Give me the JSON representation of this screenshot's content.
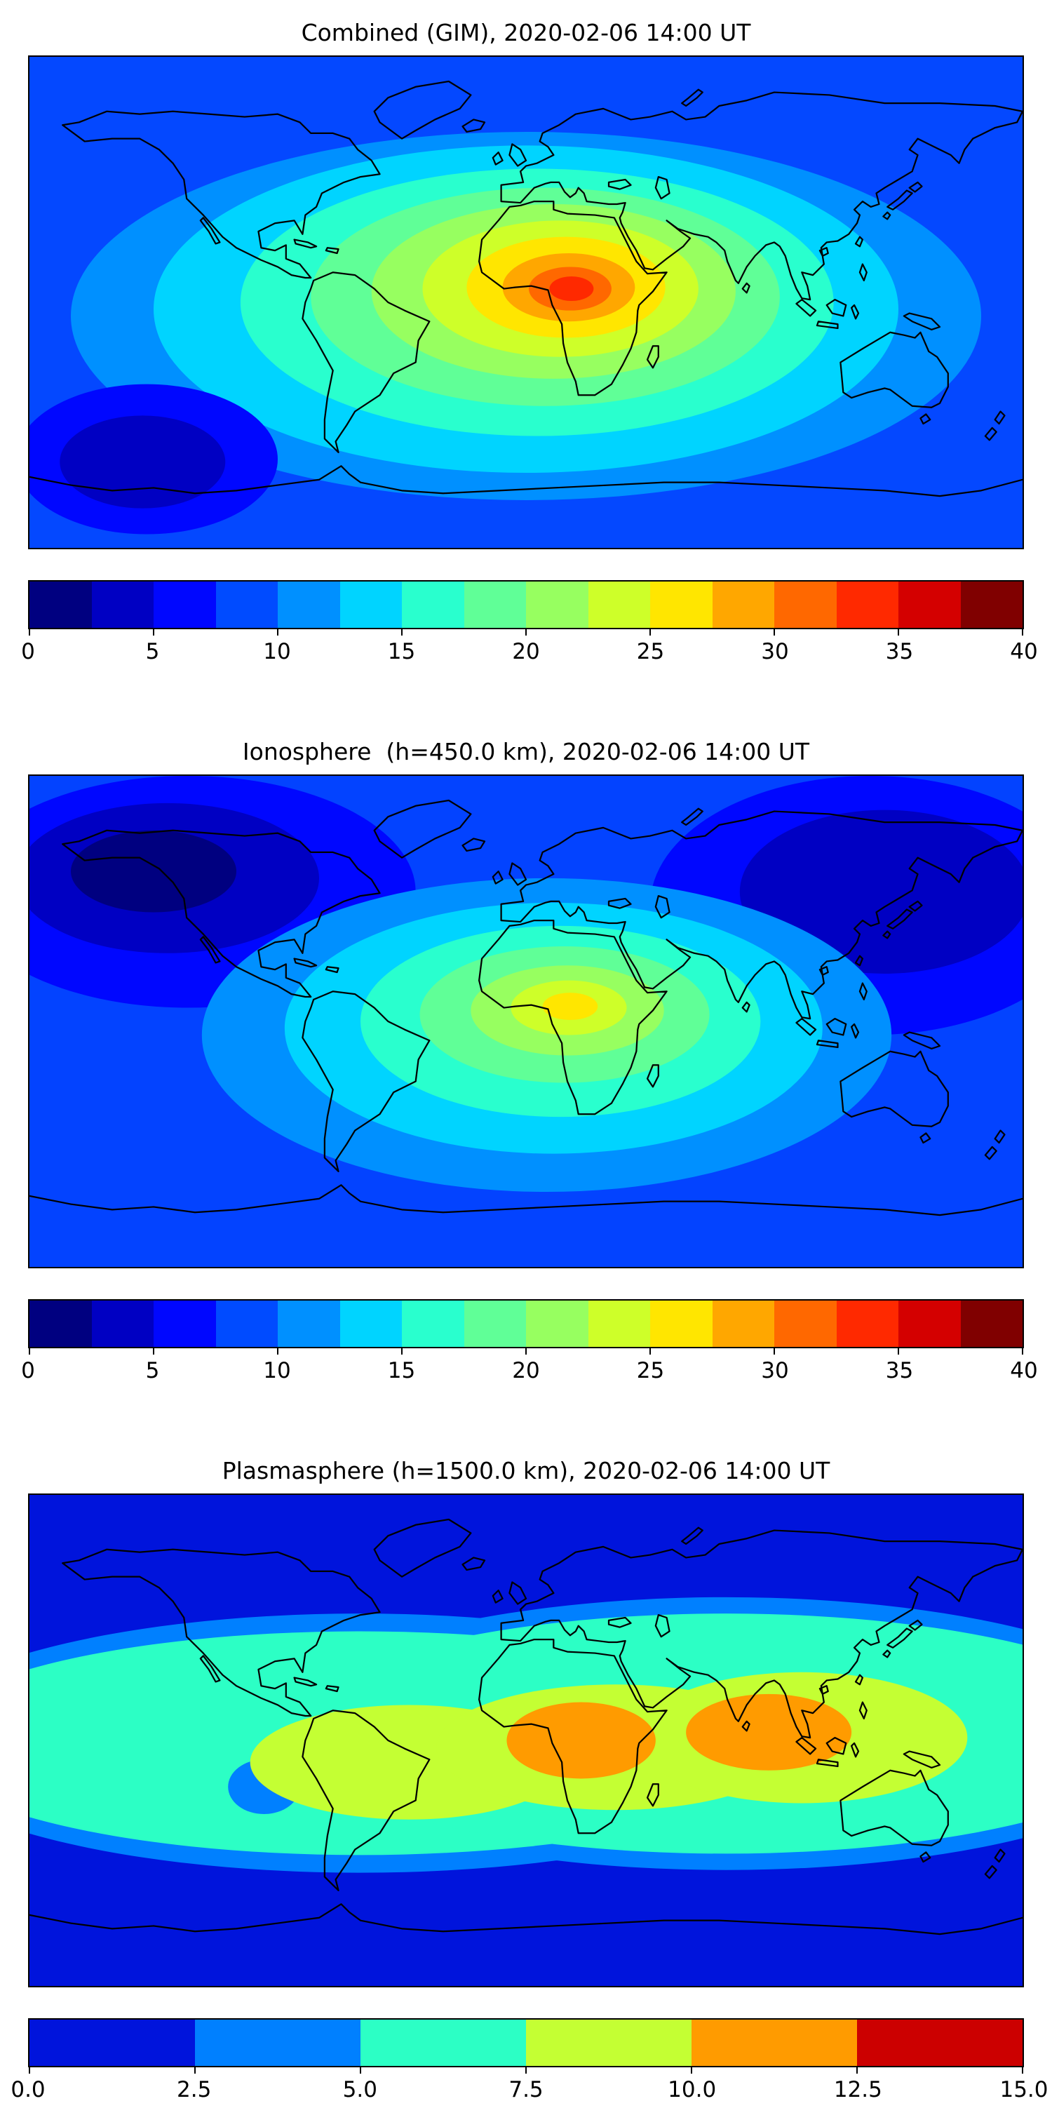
{
  "figure": {
    "background": "#ffffff",
    "description": "Three stacked global TEC contour maps with horizontal jet colorbars",
    "projection": "equirectangular, lon -180..180, lat -90..90"
  },
  "chart_data": {
    "type": "heatmap",
    "layout": {
      "colorbar_orientation": "horizontal",
      "coastlines": true,
      "grid": false
    },
    "panels": [
      {
        "title": "Combined (GIM), 2020-02-06 14:00 UT",
        "base_color": "#0448ff",
        "base_value_range": [
          7.5,
          10
        ],
        "peak": {
          "lon": 16,
          "lat": 5,
          "value_estimate": 37.5
        },
        "low": {
          "lon": -139,
          "lat": -58,
          "value_estimate": 3
        },
        "colorbar": {
          "min": 0,
          "max": 40,
          "ticks": [
            0,
            5,
            10,
            15,
            20,
            25,
            30,
            35,
            40
          ],
          "tick_labels": [
            "0",
            "5",
            "10",
            "15",
            "20",
            "25",
            "30",
            "35",
            "40"
          ],
          "colors": [
            "#000080",
            "#0000c3",
            "#0007ff",
            "#004bff",
            "#0090ff",
            "#00d4ff",
            "#29ffce",
            "#60ff97",
            "#97ff60",
            "#ceff29",
            "#ffe600",
            "#ffa700",
            "#ff6800",
            "#ff2900",
            "#d40000",
            "#800000"
          ]
        },
        "contour_regions": [
          {
            "lon": 0,
            "lat": -5,
            "rlon": 165,
            "rlat": 67.5,
            "color": "#0090ff",
            "value_min": 10,
            "value_max": 12.5
          },
          {
            "lon": 0,
            "lat": -2.5,
            "rlon": 135,
            "rlat": 60,
            "color": "#00d4ff",
            "value_min": 12.5,
            "value_max": 15
          },
          {
            "lon": 4,
            "lat": 0,
            "rlon": 107.5,
            "rlat": 49,
            "color": "#29ffce",
            "value_min": 15,
            "value_max": 17.5
          },
          {
            "lon": 7,
            "lat": 2,
            "rlon": 85,
            "rlat": 40,
            "color": "#60ff97",
            "value_min": 17.5,
            "value_max": 20
          },
          {
            "lon": 10,
            "lat": 4,
            "rlon": 66,
            "rlat": 32,
            "color": "#97ff60",
            "value_min": 20,
            "value_max": 22.5
          },
          {
            "lon": 12.5,
            "lat": 5,
            "rlon": 50,
            "rlat": 25,
            "color": "#ceff29",
            "value_min": 22.5,
            "value_max": 25
          },
          {
            "lon": 14.5,
            "lat": 5.5,
            "rlon": 36,
            "rlat": 18.5,
            "color": "#ffe600",
            "value_min": 25,
            "value_max": 27.5
          },
          {
            "lon": 15.5,
            "lat": 5.5,
            "rlon": 24,
            "rlat": 12.5,
            "color": "#ffa700",
            "value_min": 27.5,
            "value_max": 30
          },
          {
            "lon": 16,
            "lat": 5,
            "rlon": 15,
            "rlat": 8,
            "color": "#ff6800",
            "value_min": 30,
            "value_max": 32.5
          },
          {
            "lon": 16.5,
            "lat": 5,
            "rlon": 8,
            "rlat": 4.5,
            "color": "#ff2900",
            "value_min": 32.5,
            "value_max": 35
          },
          {
            "lon": -137.5,
            "lat": -57.5,
            "rlon": 47.5,
            "rlat": 27.5,
            "color": "#0007ff",
            "value_min": 5,
            "value_max": 7.5
          },
          {
            "lon": -139,
            "lat": -58.5,
            "rlon": 30,
            "rlat": 17,
            "color": "#0000c3",
            "value_min": 2.5,
            "value_max": 5
          }
        ]
      },
      {
        "title": "Ionosphere  (h=450.0 km), 2020-02-06 14:00 UT",
        "base_color": "#0343ff",
        "base_value_range": [
          7.5,
          10
        ],
        "peak": {
          "lon": 16,
          "lat": 5.5,
          "value_estimate": 26
        },
        "low": {
          "lon": -135,
          "lat": 55,
          "value_estimate": 1.5
        },
        "colorbar": {
          "min": 0,
          "max": 40,
          "ticks": [
            0,
            5,
            10,
            15,
            20,
            25,
            30,
            35,
            40
          ],
          "tick_labels": [
            "0",
            "5",
            "10",
            "15",
            "20",
            "25",
            "30",
            "35",
            "40"
          ],
          "colors": [
            "#000080",
            "#0000c3",
            "#0007ff",
            "#004bff",
            "#0090ff",
            "#00d4ff",
            "#29ffce",
            "#60ff97",
            "#97ff60",
            "#ceff29",
            "#ffe600",
            "#ffa700",
            "#ff6800",
            "#ff2900",
            "#d40000",
            "#800000"
          ]
        },
        "contour_regions": [
          {
            "lon": -122.5,
            "lat": 47.5,
            "rlon": 82.5,
            "rlat": 42.5,
            "color": "#0007ff",
            "value_min": 5,
            "value_max": 7.5
          },
          {
            "lon": -130,
            "lat": 52.5,
            "rlon": 55,
            "rlat": 27.5,
            "color": "#0000c3",
            "value_min": 2.5,
            "value_max": 5
          },
          {
            "lon": -135,
            "lat": 55,
            "rlon": 30,
            "rlat": 15,
            "color": "#000080",
            "value_min": 0,
            "value_max": 2.5
          },
          {
            "lon": 125,
            "lat": 42.5,
            "rlon": 80,
            "rlat": 47.5,
            "color": "#0007ff",
            "value_min": 5,
            "value_max": 7.5
          },
          {
            "lon": 130,
            "lat": 47.5,
            "rlon": 52.5,
            "rlat": 30,
            "color": "#0000c3",
            "value_min": 2.5,
            "value_max": 5
          },
          {
            "lon": 7.5,
            "lat": -5,
            "rlon": 125,
            "rlat": 57.5,
            "color": "#0090ff",
            "value_min": 10,
            "value_max": 12.5
          },
          {
            "lon": 10,
            "lat": -2.5,
            "rlon": 97.5,
            "rlat": 46,
            "color": "#00d4ff",
            "value_min": 12.5,
            "value_max": 15
          },
          {
            "lon": 12.5,
            "lat": 0,
            "rlon": 72.5,
            "rlat": 35,
            "color": "#29ffce",
            "value_min": 15,
            "value_max": 17.5
          },
          {
            "lon": 14,
            "lat": 2.5,
            "rlon": 52.5,
            "rlat": 25,
            "color": "#60ff97",
            "value_min": 17.5,
            "value_max": 20
          },
          {
            "lon": 15,
            "lat": 4,
            "rlon": 35,
            "rlat": 16.5,
            "color": "#97ff60",
            "value_min": 20,
            "value_max": 22.5
          },
          {
            "lon": 15.5,
            "lat": 5,
            "rlon": 21,
            "rlat": 10,
            "color": "#ceff29",
            "value_min": 22.5,
            "value_max": 25
          },
          {
            "lon": 16,
            "lat": 5.5,
            "rlon": 10,
            "rlat": 5,
            "color": "#ffe600",
            "value_min": 25,
            "value_max": 27.5
          }
        ]
      },
      {
        "title": "Plasmasphere (h=1500.0 km), 2020-02-06 14:00 UT",
        "base_color": "#0014dc",
        "base_value_range": [
          0,
          2.5
        ],
        "peak": {
          "lon": 88,
          "lat": 3,
          "value_estimate": 12
        },
        "low": {
          "lon": -95,
          "lat": -17,
          "value_estimate": 4
        },
        "colorbar": {
          "min": 0,
          "max": 15,
          "ticks": [
            0,
            2.5,
            5,
            7.5,
            10,
            12.5,
            15
          ],
          "tick_labels": [
            "0.0",
            "2.5",
            "5.0",
            "7.5",
            "10.0",
            "12.5",
            "15.0"
          ],
          "colors": [
            "#0014dc",
            "#0080ff",
            "#2cffc5",
            "#c4ff33",
            "#ff9b00",
            "#cc0000"
          ]
        },
        "contour_regions": [
          {
            "lon": -60,
            "lat": -1,
            "rlon": 167.5,
            "rlat": 47.5,
            "color": "#0080ff",
            "value_min": 2.5,
            "value_max": 5
          },
          {
            "lon": 72.5,
            "lat": 2.5,
            "rlon": 167.5,
            "rlat": 50,
            "color": "#0080ff",
            "value_min": 2.5,
            "value_max": 5
          },
          {
            "lon": -60,
            "lat": -1,
            "rlon": 160,
            "rlat": 41,
            "color": "#2cffc5",
            "value_min": 5,
            "value_max": 7.5
          },
          {
            "lon": 72.5,
            "lat": 2.5,
            "rlon": 160,
            "rlat": 44,
            "color": "#2cffc5",
            "value_min": 5,
            "value_max": 7.5
          },
          {
            "lon": -95,
            "lat": -17,
            "rlon": 13,
            "rlat": 10,
            "color": "#0080ff",
            "value_min": 2.5,
            "value_max": 5
          },
          {
            "lon": -42.5,
            "lat": -8,
            "rlon": 57.5,
            "rlat": 21,
            "color": "#c4ff33",
            "value_min": 7.5,
            "value_max": 10
          },
          {
            "lon": 32.5,
            "lat": -2.5,
            "rlon": 65,
            "rlat": 23,
            "color": "#c4ff33",
            "value_min": 7.5,
            "value_max": 10
          },
          {
            "lon": 100,
            "lat": 1,
            "rlon": 60,
            "rlat": 24,
            "color": "#c4ff33",
            "value_min": 7.5,
            "value_max": 10
          },
          {
            "lon": 20,
            "lat": 0,
            "rlon": 27,
            "rlat": 14,
            "color": "#ff9b00",
            "value_min": 10,
            "value_max": 12.5
          },
          {
            "lon": 88,
            "lat": 3,
            "rlon": 30,
            "rlat": 14,
            "color": "#ff9b00",
            "value_min": 10,
            "value_max": 12.5
          }
        ]
      }
    ]
  }
}
